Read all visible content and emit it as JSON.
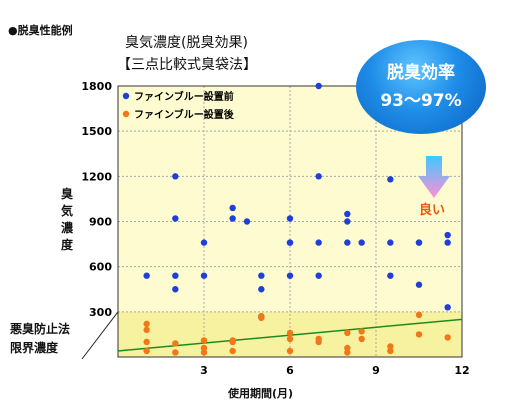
{
  "header_label": "●脱臭性能例",
  "title": "臭気濃度(脱臭効果)",
  "subtitle": "【三点比較式臭袋法】",
  "badge": {
    "line1": "脱臭効率",
    "line2": "93～97%"
  },
  "annotation": "良い",
  "limit_label": {
    "line1": "悪臭防止法",
    "line2": "限界濃度"
  },
  "colors": {
    "before": "#1f3fd6",
    "after": "#f07818",
    "plot_bg": "#fdfbcf",
    "limit_band": "#f6f2a0",
    "trend": "#1e8a1e"
  },
  "chart_data": {
    "type": "scatter",
    "title": "臭気濃度(脱臭効果)",
    "subtitle": "【三点比較式臭袋法】",
    "xlabel": "使用期間(月)",
    "ylabel": "臭気濃度",
    "xlim": [
      0,
      12
    ],
    "ylim": [
      0,
      1800
    ],
    "x_ticks": [
      3,
      6,
      9,
      12
    ],
    "y_ticks": [
      300,
      600,
      900,
      1200,
      1500,
      1800
    ],
    "grid": true,
    "legend": "top-left",
    "limit_value": 300,
    "series": [
      {
        "name": "ファインブルー設置前",
        "color": "#1f3fd6",
        "x": [
          1.0,
          2.0,
          2.0,
          2.0,
          2.0,
          3.0,
          3.0,
          4.0,
          4.0,
          4.5,
          5.0,
          5.0,
          5.0,
          6.0,
          6.0,
          6.0,
          6.0,
          7.0,
          7.0,
          7.0,
          7.0,
          8.0,
          8.0,
          8.0,
          8.5,
          9.5,
          9.5,
          9.5,
          10.5,
          10.5,
          10.5,
          11.5,
          11.5,
          11.5
        ],
        "y": [
          540,
          1200,
          920,
          540,
          450,
          760,
          540,
          990,
          920,
          900,
          270,
          540,
          450,
          920,
          760,
          540,
          760,
          1800,
          760,
          540,
          1200,
          950,
          900,
          760,
          760,
          1180,
          760,
          540,
          760,
          480,
          760,
          810,
          760,
          330
        ]
      },
      {
        "name": "ファインブルー設置後",
        "color": "#f07818",
        "x": [
          1.0,
          1.0,
          1.0,
          1.0,
          2.0,
          2.0,
          3.0,
          3.0,
          3.0,
          4.0,
          4.0,
          4.0,
          5.0,
          5.0,
          6.0,
          6.0,
          6.0,
          7.0,
          7.0,
          8.0,
          8.0,
          8.0,
          8.5,
          8.5,
          9.5,
          9.5,
          10.5,
          10.5,
          11.5
        ],
        "y": [
          220,
          180,
          100,
          40,
          90,
          30,
          110,
          60,
          30,
          100,
          40,
          110,
          270,
          260,
          160,
          120,
          40,
          120,
          100,
          160,
          60,
          30,
          170,
          120,
          70,
          40,
          280,
          150,
          130
        ]
      }
    ],
    "trend": {
      "x": [
        0,
        12
      ],
      "y": [
        40,
        250
      ]
    },
    "annotations": [
      "良い"
    ]
  }
}
